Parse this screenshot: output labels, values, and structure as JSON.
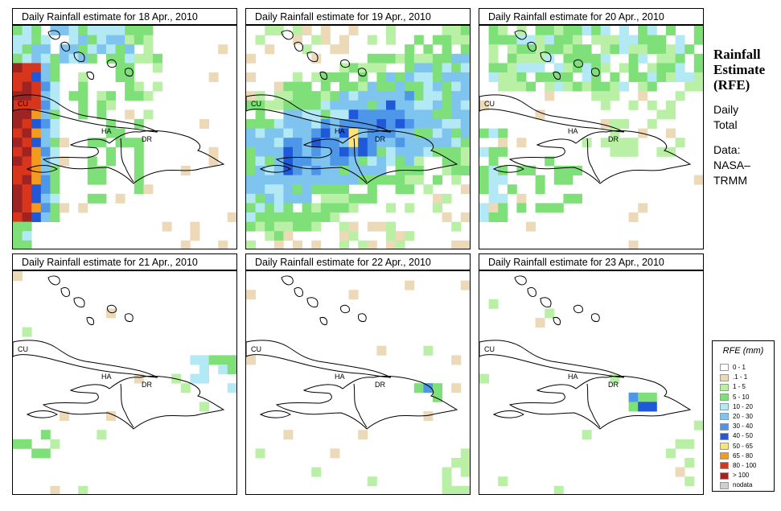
{
  "panels": [
    {
      "title": "Daily Rainfall estimate for  18 Apr., 2010",
      "labels": [
        "CU",
        "HA",
        "DR"
      ]
    },
    {
      "title": "Daily Rainfall estimate for  19 Apr., 2010",
      "labels": [
        "CU",
        "HA",
        "DR"
      ]
    },
    {
      "title": "Daily Rainfall estimate for  20 Apr., 2010",
      "labels": [
        "CU",
        "HA",
        "DR"
      ]
    },
    {
      "title": "Daily Rainfall estimate for  21 Apr., 2010",
      "labels": [
        "CU",
        "HA",
        "DR"
      ]
    },
    {
      "title": "Daily Rainfall estimate for  22 Apr., 2010",
      "labels": [
        "CU",
        "HA",
        "DR"
      ]
    },
    {
      "title": "Daily Rainfall estimate for  23 Apr., 2010",
      "labels": [
        "CU",
        "HA",
        "DR"
      ]
    }
  ],
  "side": {
    "title": [
      "Rainfall",
      "Estimate",
      "(RFE)"
    ],
    "period": [
      "Daily",
      "Total"
    ],
    "source": [
      "Data:",
      "NASA–",
      "TRMM"
    ]
  },
  "legend": {
    "title": "RFE (mm)",
    "entries": [
      {
        "label": "0 - 1",
        "color": "#ffffff"
      },
      {
        "label": ".1 - 1",
        "color": "#ecd9b8"
      },
      {
        "label": "1 - 5",
        "color": "#b9f0a6"
      },
      {
        "label": "5 - 10",
        "color": "#7fe07a"
      },
      {
        "label": "10 - 20",
        "color": "#b3e8f5"
      },
      {
        "label": "20 - 30",
        "color": "#7ec4ef"
      },
      {
        "label": "30 - 40",
        "color": "#4d96e8"
      },
      {
        "label": "40 - 50",
        "color": "#1f58d8"
      },
      {
        "label": "50 - 65",
        "color": "#fbe37a"
      },
      {
        "label": "65 - 80",
        "color": "#f49b1e"
      },
      {
        "label": "80 - 100",
        "color": "#d8361c"
      },
      {
        "label": "> 100",
        "color": "#9e2424"
      },
      {
        "label": "nodata",
        "color": "#cfcfcf"
      }
    ]
  }
}
